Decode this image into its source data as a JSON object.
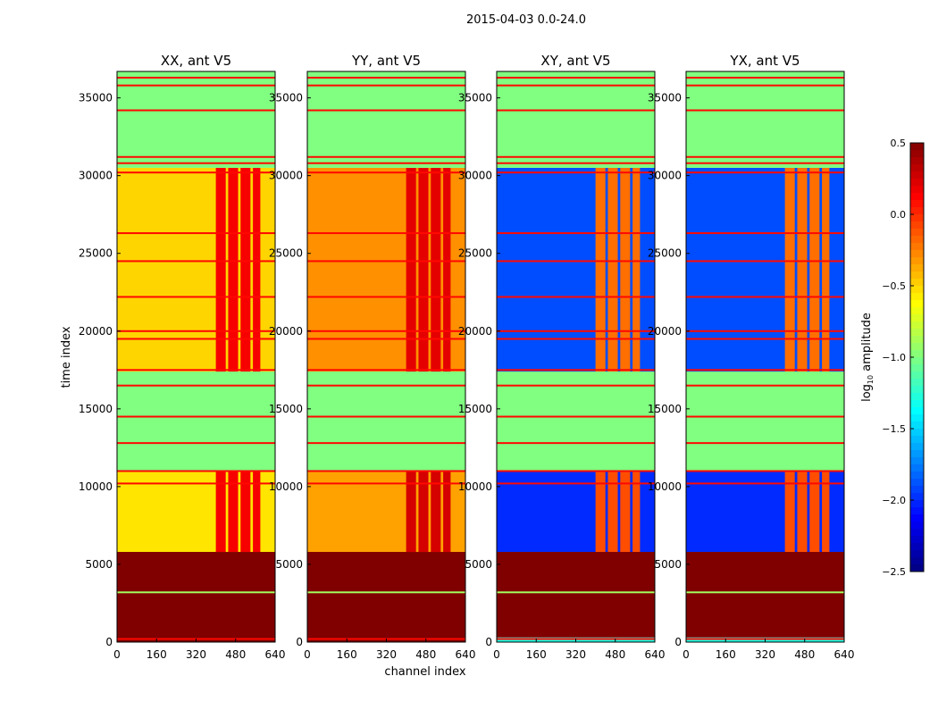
{
  "chart_data": {
    "type": "heatmap",
    "title": "2015-04-03 0.0-24.0",
    "xlabel": "channel index",
    "ylabel": "time index",
    "xlim": [
      0,
      640
    ],
    "ylim": [
      0,
      36700
    ],
    "xticks": [
      "0",
      "160",
      "320",
      "480",
      "640"
    ],
    "yticks": [
      "0",
      "5000",
      "10000",
      "15000",
      "20000",
      "25000",
      "30000",
      "35000"
    ],
    "colorbar": {
      "label": "log10 amplitude",
      "label_base": "log",
      "label_sub": "10",
      "label_rest": " amplitude",
      "colormap": "jet",
      "range": [
        -2.5,
        0.5
      ],
      "ticks": [
        "0.5",
        "0.0",
        "−0.5",
        "−1.0",
        "−1.5",
        "−2.0",
        "−2.5"
      ]
    },
    "stripe_channels": [
      [
        400,
        440
      ],
      [
        450,
        490
      ],
      [
        500,
        540
      ],
      [
        550,
        580
      ]
    ],
    "flag_lines": [
      200,
      3200,
      10200,
      11000,
      12800,
      14500,
      16500,
      17500,
      19500,
      20000,
      22200,
      24500,
      26300,
      30200,
      30800,
      31200,
      34200,
      35800,
      36300
    ],
    "panels": [
      {
        "title": "XX, ant V5",
        "segments": [
          {
            "t": [
              0,
              5800
            ],
            "base": 0.5,
            "stripe": 0.5
          },
          {
            "t": [
              5800,
              11000
            ],
            "base": -0.55,
            "stripe": 0.15
          },
          {
            "t": [
              11000,
              17400
            ],
            "base": -1.0,
            "stripe": -1.0
          },
          {
            "t": [
              17400,
              30500
            ],
            "base": -0.5,
            "stripe": 0.15
          },
          {
            "t": [
              30500,
              36700
            ],
            "base": -1.0,
            "stripe": -1.0
          }
        ]
      },
      {
        "title": "YY, ant V5",
        "segments": [
          {
            "t": [
              0,
              5800
            ],
            "base": 0.5,
            "stripe": 0.5
          },
          {
            "t": [
              5800,
              11000
            ],
            "base": -0.35,
            "stripe": 0.25
          },
          {
            "t": [
              11000,
              17400
            ],
            "base": -1.0,
            "stripe": -1.0
          },
          {
            "t": [
              17400,
              30500
            ],
            "base": -0.3,
            "stripe": 0.2
          },
          {
            "t": [
              30500,
              36700
            ],
            "base": -1.0,
            "stripe": -1.0
          }
        ]
      },
      {
        "title": "XY, ant V5",
        "segments": [
          {
            "t": [
              0,
              300
            ],
            "base": -1.3,
            "stripe": -1.3
          },
          {
            "t": [
              300,
              5800
            ],
            "base": 0.5,
            "stripe": 0.5
          },
          {
            "t": [
              5800,
              11000
            ],
            "base": -2.0,
            "stripe": -0.1
          },
          {
            "t": [
              11000,
              17400
            ],
            "base": -1.0,
            "stripe": -1.0
          },
          {
            "t": [
              17400,
              30500
            ],
            "base": -1.9,
            "stripe": -0.2
          },
          {
            "t": [
              30500,
              36700
            ],
            "base": -1.0,
            "stripe": -1.0
          }
        ]
      },
      {
        "title": "YX, ant V5",
        "segments": [
          {
            "t": [
              0,
              300
            ],
            "base": -1.3,
            "stripe": -1.3
          },
          {
            "t": [
              300,
              5800
            ],
            "base": 0.5,
            "stripe": 0.5
          },
          {
            "t": [
              5800,
              11000
            ],
            "base": -2.0,
            "stripe": -0.1
          },
          {
            "t": [
              11000,
              17400
            ],
            "base": -1.0,
            "stripe": -1.0
          },
          {
            "t": [
              17400,
              30500
            ],
            "base": -1.9,
            "stripe": -0.2
          },
          {
            "t": [
              30500,
              36700
            ],
            "base": -1.0,
            "stripe": -1.0
          }
        ]
      }
    ]
  }
}
